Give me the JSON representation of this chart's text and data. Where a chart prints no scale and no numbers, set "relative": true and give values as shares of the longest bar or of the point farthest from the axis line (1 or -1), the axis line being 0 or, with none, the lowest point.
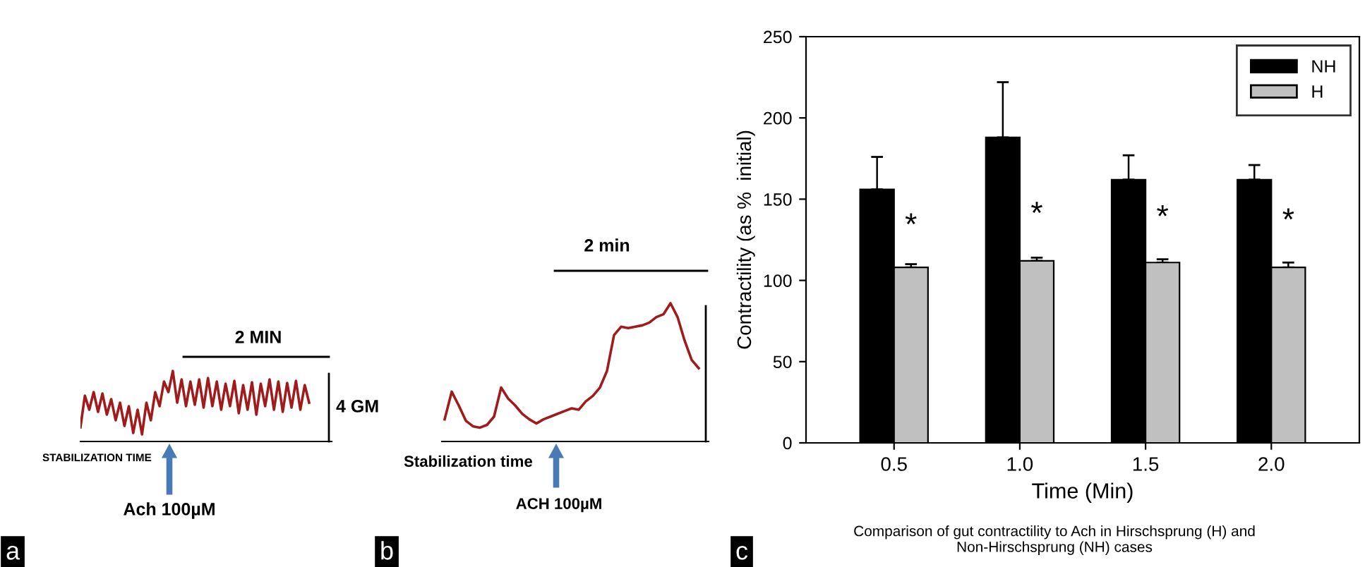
{
  "chart_data": [
    {
      "type": "line",
      "title": "a",
      "relative": true,
      "categories": [
        null,
        null,
        null,
        null,
        null,
        null,
        null,
        null,
        null,
        null,
        null,
        null,
        null,
        null,
        null,
        null,
        null,
        null,
        null,
        null,
        null,
        null,
        null,
        null,
        null,
        null,
        null,
        null,
        null,
        null,
        null,
        null,
        null,
        null,
        null,
        null,
        null,
        null,
        null,
        null,
        null,
        null,
        null,
        null,
        null,
        null,
        null,
        null,
        null,
        null,
        null,
        null,
        null
      ],
      "series": [
        {
          "color": "#a01c1c",
          "values": [
            0.2,
            0.65,
            0.45,
            0.7,
            0.42,
            0.68,
            0.38,
            0.6,
            0.3,
            0.55,
            0.22,
            0.5,
            0.12,
            0.45,
            0.1,
            0.55,
            0.3,
            0.7,
            0.5,
            0.85,
            0.7,
            1.0,
            0.55,
            0.88,
            0.5,
            0.85,
            0.52,
            0.88,
            0.48,
            0.9,
            0.5,
            0.85,
            0.45,
            0.82,
            0.5,
            0.86,
            0.4,
            0.8,
            0.45,
            0.84,
            0.38,
            0.82,
            0.5,
            0.88,
            0.45,
            0.85,
            0.42,
            0.83,
            0.48,
            0.86,
            0.45,
            0.8,
            0.55
          ]
        }
      ],
      "annotations": [
        "2 MIN",
        "4 GM",
        "STABILIZATION TIME",
        "Ach 100µM"
      ]
    },
    {
      "type": "line",
      "title": "b",
      "relative": true,
      "categories": [
        null,
        null,
        null,
        null,
        null,
        null,
        null,
        null,
        null,
        null,
        null,
        null,
        null,
        null,
        null,
        null,
        null,
        null,
        null,
        null,
        null,
        null,
        null,
        null,
        null,
        null,
        null,
        null,
        null,
        null,
        null,
        null,
        null,
        null,
        null,
        null,
        null
      ],
      "series": [
        {
          "color": "#a01c1c",
          "values": [
            0.16,
            0.36,
            0.26,
            0.15,
            0.11,
            0.1,
            0.12,
            0.18,
            0.39,
            0.31,
            0.26,
            0.2,
            0.16,
            0.13,
            0.16,
            0.18,
            0.2,
            0.22,
            0.24,
            0.23,
            0.29,
            0.33,
            0.39,
            0.51,
            0.77,
            0.83,
            0.82,
            0.83,
            0.84,
            0.86,
            0.9,
            0.92,
            1.0,
            0.9,
            0.73,
            0.59,
            0.53
          ]
        }
      ],
      "annotations": [
        "2 min",
        "Stabilization time",
        "ACH 100µM"
      ]
    },
    {
      "type": "bar",
      "title": "c",
      "xlabel": "Time (Min)",
      "ylabel": "Contractility (as %  initial)",
      "categories": [
        "0.5",
        "1.0",
        "1.5",
        "2.0"
      ],
      "series": [
        {
          "name": "NH",
          "color": "#000000",
          "values": [
            156,
            188,
            162,
            162
          ],
          "errors": [
            [
              156,
              176
            ],
            [
              188,
              222
            ],
            [
              162,
              177
            ],
            [
              162,
              171
            ]
          ]
        },
        {
          "name": "H",
          "color": "#c0c0c0",
          "values": [
            108,
            112,
            111,
            108
          ],
          "errors": [
            [
              108,
              110
            ],
            [
              112,
              114
            ],
            [
              111,
              113
            ],
            [
              108,
              111
            ]
          ]
        }
      ],
      "ylim": [
        0,
        250
      ],
      "yticks": [
        0,
        50,
        100,
        150,
        200,
        250
      ],
      "grid": false,
      "legend": "top right",
      "annotations": [
        {
          "text": "*",
          "x": "0.5",
          "y": 133
        },
        {
          "text": "*",
          "x": "1.0",
          "y": 140
        },
        {
          "text": "*",
          "x": "1.5",
          "y": 138
        },
        {
          "text": "*",
          "x": "2.0",
          "y": 136
        },
        "Comparison of gut contractility to Ach in Hirschsprung (H) and\nNon-Hirschsprung (NH) cases"
      ]
    }
  ]
}
